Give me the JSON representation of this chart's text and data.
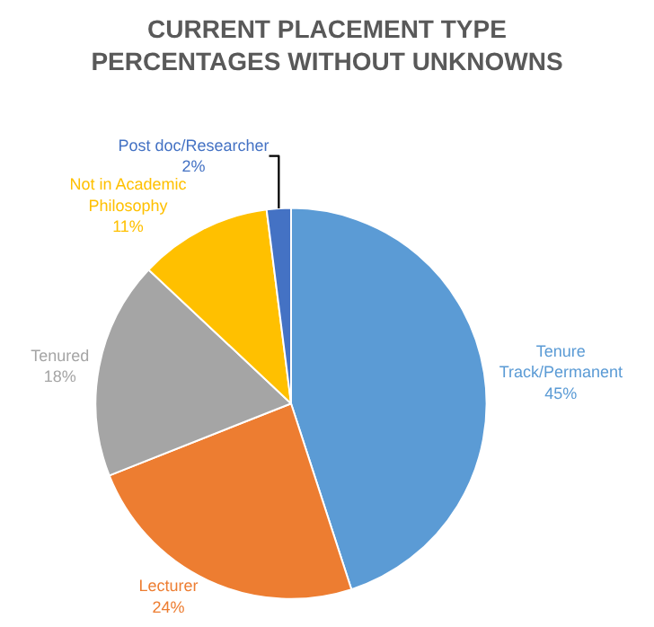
{
  "chart_data": {
    "type": "pie",
    "title": "CURRENT PLACEMENT TYPE PERCENTAGES WITHOUT UNKNOWNS",
    "categories": [
      "Tenure Track/Permanent",
      "Lecturer",
      "Tenured",
      "Not in Academic Philosophy",
      "Post doc/Researcher"
    ],
    "values": [
      45,
      24,
      18,
      11,
      2
    ],
    "value_labels": [
      "45%",
      "24%",
      "18%",
      "11%",
      "2%"
    ],
    "colors": [
      "#5b9bd5",
      "#ed7d31",
      "#a5a5a5",
      "#ffc000",
      "#4472c4"
    ],
    "legend": false
  }
}
